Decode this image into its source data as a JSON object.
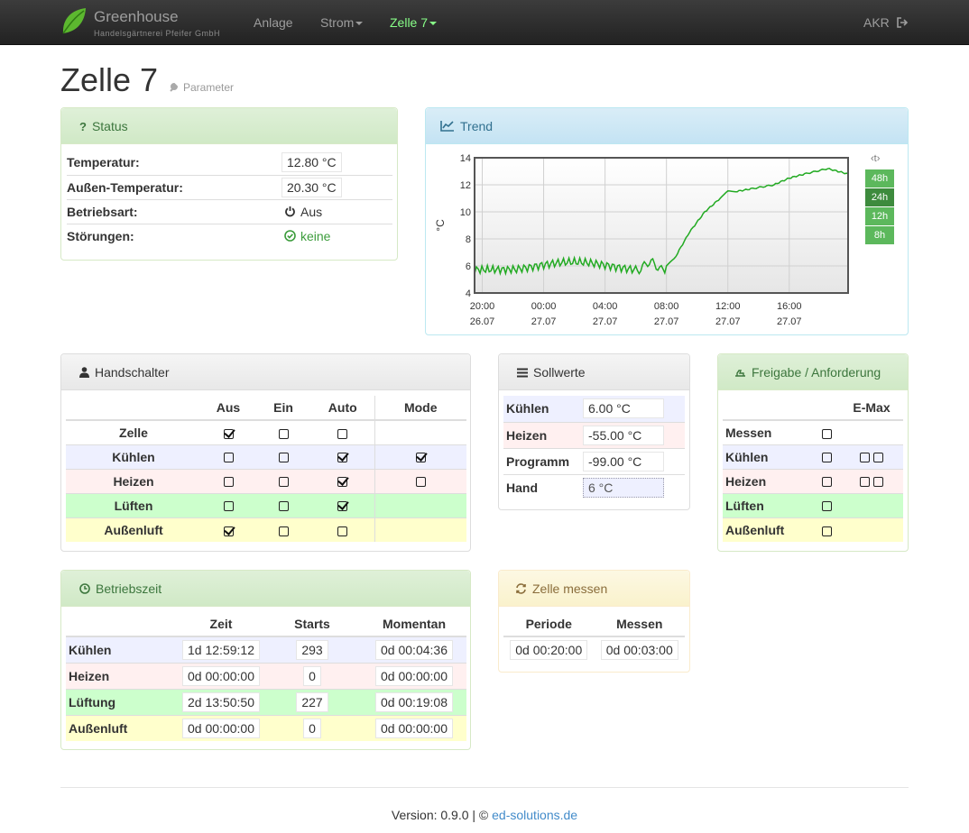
{
  "nav": {
    "brand_title": "Greenhouse",
    "brand_sub": "Handelsgärtnerei Pfeifer GmbH",
    "items": [
      "Anlage",
      "Strom",
      "Zelle 7"
    ],
    "user": "AKR"
  },
  "page": {
    "title": "Zelle 7",
    "subtitle": "Parameter"
  },
  "status": {
    "heading": "Status",
    "rows": [
      {
        "label": "Temperatur:",
        "value": "12.80 °C"
      },
      {
        "label": "Außen-Temperatur:",
        "value": "20.30 °C"
      },
      {
        "label": "Betriebsart:",
        "value": "Aus"
      },
      {
        "label": "Störungen:",
        "value": "keine"
      }
    ]
  },
  "trend": {
    "heading": "Trend",
    "buttons_label": "‹t›",
    "buttons": [
      "48h",
      "24h",
      "12h",
      "8h"
    ],
    "selected": "24h"
  },
  "chart_data": {
    "type": "line",
    "ylabel": "°C",
    "ylim": [
      4,
      14
    ],
    "yticks": [
      "14",
      "12",
      "10",
      "8",
      "6",
      "4"
    ],
    "xticks": [
      {
        "time": "20:00",
        "date": "26.07"
      },
      {
        "time": "00:00",
        "date": "27.07"
      },
      {
        "time": "04:00",
        "date": "27.07"
      },
      {
        "time": "08:00",
        "date": "27.07"
      },
      {
        "time": "12:00",
        "date": "27.07"
      },
      {
        "time": "16:00",
        "date": "27.07"
      }
    ],
    "series": [
      {
        "color": "#22aa22",
        "x": [
          "26.07 19:30",
          "26.07 22:00",
          "27.07 00:00",
          "27.07 02:00",
          "27.07 04:00",
          "27.07 06:00",
          "27.07 07:00",
          "27.07 08:00",
          "27.07 08:30",
          "27.07 09:30",
          "27.07 10:30",
          "27.07 11:30",
          "27.07 12:00",
          "27.07 12:30",
          "27.07 13:30",
          "27.07 15:00",
          "27.07 16:00",
          "27.07 17:00",
          "27.07 18:30",
          "27.07 19:30",
          "27.07 19:50"
        ],
        "y": [
          6.0,
          6.0,
          6.0,
          6.0,
          6.0,
          6.0,
          6.0,
          6.0,
          6.5,
          8.5,
          10.0,
          11.0,
          11.5,
          11.5,
          11.7,
          12.0,
          12.5,
          12.8,
          13.2,
          12.9,
          12.8
        ]
      }
    ]
  },
  "handschalter": {
    "heading": "Handschalter",
    "cols": [
      "Aus",
      "Ein",
      "Auto",
      "Mode"
    ],
    "rows": [
      {
        "label": "Zelle",
        "checks": [
          true,
          false,
          false
        ],
        "mode": null
      },
      {
        "label": "Kühlen",
        "checks": [
          false,
          false,
          true
        ],
        "mode": true
      },
      {
        "label": "Heizen",
        "checks": [
          false,
          false,
          true
        ],
        "mode": false
      },
      {
        "label": "Lüften",
        "checks": [
          false,
          false,
          true
        ],
        "mode": null
      },
      {
        "label": "Außenluft",
        "checks": [
          true,
          false,
          false
        ],
        "mode": null
      }
    ]
  },
  "sollwerte": {
    "heading": "Sollwerte",
    "rows": [
      {
        "label": "Kühlen",
        "value": "6.00 °C"
      },
      {
        "label": "Heizen",
        "value": "-55.00 °C"
      },
      {
        "label": "Programm",
        "value": "-99.00 °C"
      },
      {
        "label": "Hand",
        "value": "6 °C"
      }
    ]
  },
  "freigabe": {
    "heading": "Freigabe / Anforderung",
    "col": "E-Max",
    "rows": [
      {
        "label": "Messen",
        "boxes": 0
      },
      {
        "label": "Kühlen",
        "boxes": 2
      },
      {
        "label": "Heizen",
        "boxes": 2
      },
      {
        "label": "Lüften",
        "boxes": 0
      },
      {
        "label": "Außenluft",
        "boxes": 0
      }
    ]
  },
  "betriebszeit": {
    "heading": "Betriebszeit",
    "cols": [
      "Zeit",
      "Starts",
      "Momentan"
    ],
    "rows": [
      {
        "label": "Kühlen",
        "zeit": "1d 12:59:12",
        "starts": "293",
        "momentan": "0d 00:04:36"
      },
      {
        "label": "Heizen",
        "zeit": "0d 00:00:00",
        "starts": "0",
        "momentan": "0d 00:00:00"
      },
      {
        "label": "Lüftung",
        "zeit": "2d 13:50:50",
        "starts": "227",
        "momentan": "0d 00:19:08"
      },
      {
        "label": "Außenluft",
        "zeit": "0d 00:00:00",
        "starts": "0",
        "momentan": "0d 00:00:00"
      }
    ]
  },
  "messen": {
    "heading": "Zelle messen",
    "cols": [
      "Periode",
      "Messen"
    ],
    "values": [
      "0d 00:20:00",
      "0d 00:03:00"
    ]
  },
  "footer": {
    "version": "Version: 0.9.0 | © ",
    "link": "ed-solutions.de"
  }
}
